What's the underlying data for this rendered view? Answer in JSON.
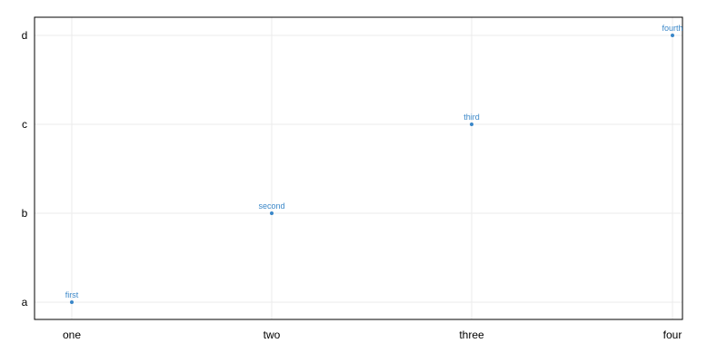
{
  "chart_data": {
    "type": "scatter",
    "title": "",
    "xlabel": "",
    "ylabel": "",
    "x_categories": [
      "one",
      "two",
      "three",
      "four"
    ],
    "y_categories": [
      "a",
      "b",
      "c",
      "d"
    ],
    "grid": true,
    "legend": "none",
    "series": [
      {
        "color": "#3a87c8",
        "points": [
          {
            "x": "one",
            "y": "a",
            "label": "first"
          },
          {
            "x": "two",
            "y": "b",
            "label": "second"
          },
          {
            "x": "three",
            "y": "c",
            "label": "third"
          },
          {
            "x": "four",
            "y": "d",
            "label": "fourth"
          }
        ]
      }
    ]
  }
}
